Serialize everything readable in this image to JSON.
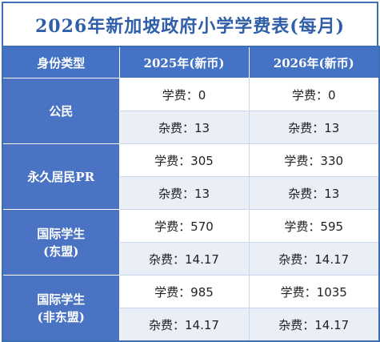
{
  "title": "2026年新加坡政府小学学费表(每月)",
  "headers": [
    "身份类型",
    "2025年(新币)",
    "2026年(新币)"
  ],
  "groups": [
    {
      "name": "公民",
      "rows": [
        {
          "c2025": "学费：0",
          "c2026": "学费：0"
        },
        {
          "c2025": "杂费：13",
          "c2026": "杂费：13"
        }
      ]
    },
    {
      "name": "永久居民PR",
      "rows": [
        {
          "c2025": "学费：305",
          "c2026": "学费：330"
        },
        {
          "c2025": "杂费：13",
          "c2026": "杂费：13"
        }
      ]
    },
    {
      "name": "国际学生\n(东盟)",
      "rows": [
        {
          "c2025": "学费：570",
          "c2026": "学费：595"
        },
        {
          "c2025": "杂费：14.17",
          "c2026": "杂费：14.17"
        }
      ]
    },
    {
      "name": "国际学生\n(非东盟)",
      "rows": [
        {
          "c2025": "学费：985",
          "c2026": "学费：1035"
        },
        {
          "c2025": "杂费：14.17",
          "c2026": "杂费：14.17"
        }
      ]
    }
  ]
}
